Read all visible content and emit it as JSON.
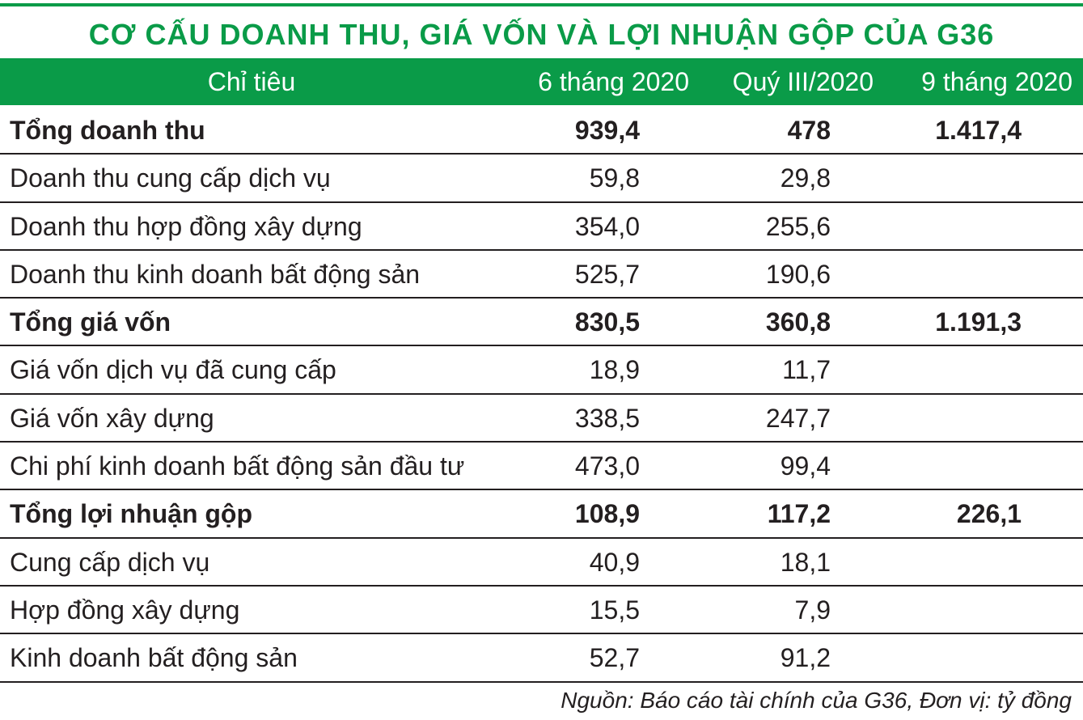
{
  "title": "CƠ CẤU DOANH THU, GIÁ VỐN VÀ LỢI NHUẬN GỘP CỦA G36",
  "colors": {
    "accent": "#0a9b48",
    "text": "#231f20"
  },
  "header": [
    "Chỉ tiêu",
    "6 tháng 2020",
    "Quý III/2020",
    "9 tháng 2020"
  ],
  "source": "Nguồn: Báo cáo tài chính của G36, Đơn vị: tỷ đồng",
  "chart_data": {
    "type": "table",
    "title": "CƠ CẤU DOANH THU, GIÁ VỐN VÀ LỢI NHUẬN GỘP CỦA G36",
    "columns": [
      "Chỉ tiêu",
      "6 tháng 2020",
      "Quý III/2020",
      "9 tháng 2020"
    ],
    "rows": [
      {
        "label": "Tổng doanh thu",
        "h1_2020": "939,4",
        "q3_2020": "478",
        "m9_2020": "1.417,4",
        "bold": true
      },
      {
        "label": "Doanh thu cung cấp dịch vụ",
        "h1_2020": "59,8",
        "q3_2020": "29,8",
        "m9_2020": "",
        "bold": false
      },
      {
        "label": "Doanh thu hợp đồng xây dựng",
        "h1_2020": "354,0",
        "q3_2020": "255,6",
        "m9_2020": "",
        "bold": false
      },
      {
        "label": "Doanh thu kinh doanh bất động sản",
        "h1_2020": "525,7",
        "q3_2020": "190,6",
        "m9_2020": "",
        "bold": false
      },
      {
        "label": "Tổng giá vốn",
        "h1_2020": "830,5",
        "q3_2020": "360,8",
        "m9_2020": "1.191,3",
        "bold": true
      },
      {
        "label": "Giá vốn dịch vụ đã cung cấp",
        "h1_2020": "18,9",
        "q3_2020": "11,7",
        "m9_2020": "",
        "bold": false
      },
      {
        "label": "Giá vốn xây dựng",
        "h1_2020": "338,5",
        "q3_2020": "247,7",
        "m9_2020": "",
        "bold": false
      },
      {
        "label": "Chi phí kinh doanh bất động sản đầu tư",
        "h1_2020": "473,0",
        "q3_2020": "99,4",
        "m9_2020": "",
        "bold": false
      },
      {
        "label": "Tổng lợi nhuận gộp",
        "h1_2020": "108,9",
        "q3_2020": "117,2",
        "m9_2020": "226,1",
        "bold": true
      },
      {
        "label": "Cung cấp dịch vụ",
        "h1_2020": "40,9",
        "q3_2020": "18,1",
        "m9_2020": "",
        "bold": false
      },
      {
        "label": "Hợp đồng xây dựng",
        "h1_2020": "15,5",
        "q3_2020": "7,9",
        "m9_2020": "",
        "bold": false
      },
      {
        "label": "Kinh doanh bất động sản",
        "h1_2020": "52,7",
        "q3_2020": "91,2",
        "m9_2020": "",
        "bold": false
      }
    ]
  }
}
